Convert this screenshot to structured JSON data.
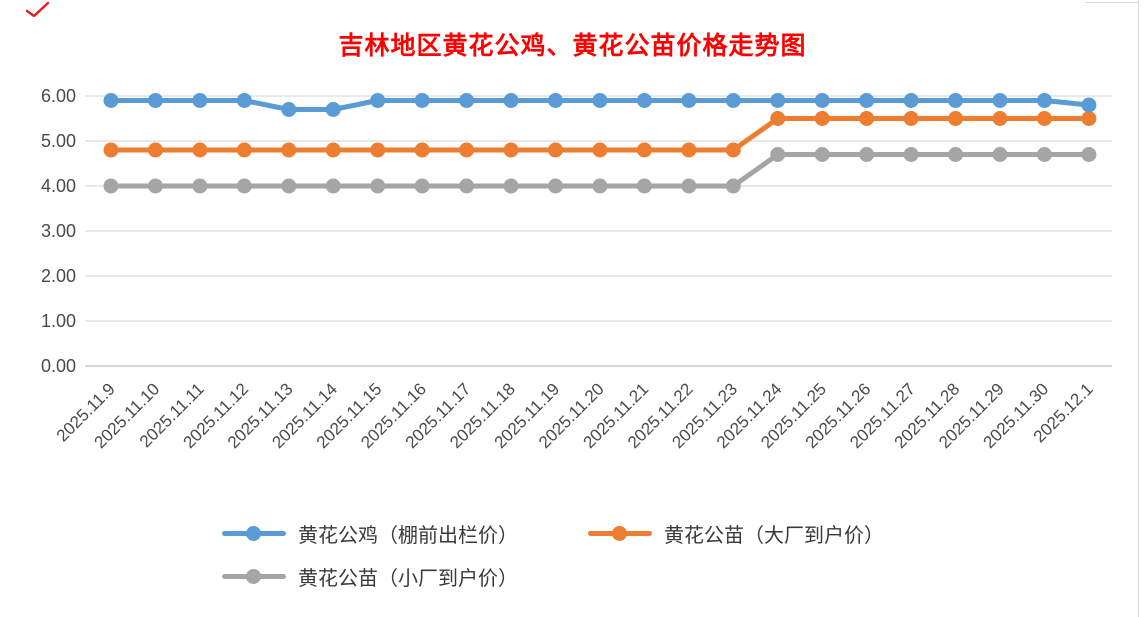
{
  "chart_data": {
    "type": "line",
    "title": "吉林地区黄花公鸡、黄花公苗价格走势图",
    "title_color": "#FF0000",
    "categories": [
      "2025.11.9",
      "2025.11.10",
      "2025.11.11",
      "2025.11.12",
      "2025.11.13",
      "2025.11.14",
      "2025.11.15",
      "2025.11.16",
      "2025.11.17",
      "2025.11.18",
      "2025.11.19",
      "2025.11.20",
      "2025.11.21",
      "2025.11.22",
      "2025.11.23",
      "2025.11.24",
      "2025.11.25",
      "2025.11.26",
      "2025.11.27",
      "2025.11.28",
      "2025.11.29",
      "2025.11.30",
      "2025.12.1"
    ],
    "series": [
      {
        "name": "黄花公鸡（棚前出栏价）",
        "color": "#5B9BD5",
        "values": [
          5.9,
          5.9,
          5.9,
          5.9,
          5.7,
          5.7,
          5.9,
          5.9,
          5.9,
          5.9,
          5.9,
          5.9,
          5.9,
          5.9,
          5.9,
          5.9,
          5.9,
          5.9,
          5.9,
          5.9,
          5.9,
          5.9,
          5.8
        ]
      },
      {
        "name": "黄花公苗（大厂到户价）",
        "color": "#ED7D31",
        "values": [
          4.8,
          4.8,
          4.8,
          4.8,
          4.8,
          4.8,
          4.8,
          4.8,
          4.8,
          4.8,
          4.8,
          4.8,
          4.8,
          4.8,
          4.8,
          5.5,
          5.5,
          5.5,
          5.5,
          5.5,
          5.5,
          5.5,
          5.5
        ]
      },
      {
        "name": "黄花公苗（小厂到户价）",
        "color": "#A5A5A5",
        "values": [
          4.0,
          4.0,
          4.0,
          4.0,
          4.0,
          4.0,
          4.0,
          4.0,
          4.0,
          4.0,
          4.0,
          4.0,
          4.0,
          4.0,
          4.0,
          4.7,
          4.7,
          4.7,
          4.7,
          4.7,
          4.7,
          4.7,
          4.7
        ]
      }
    ],
    "ylim": [
      0,
      6
    ],
    "y_tick_step": 1,
    "y_ticks": [
      "0.00",
      "1.00",
      "2.00",
      "3.00",
      "4.00",
      "5.00",
      "6.00"
    ],
    "x_tick_rotation": 45,
    "grid": true,
    "gridline_color": "#D9D9D9",
    "axis_line_color": "#BFBFBF",
    "tick_label_color": "#4A4A4A",
    "legend_position": "bottom"
  }
}
